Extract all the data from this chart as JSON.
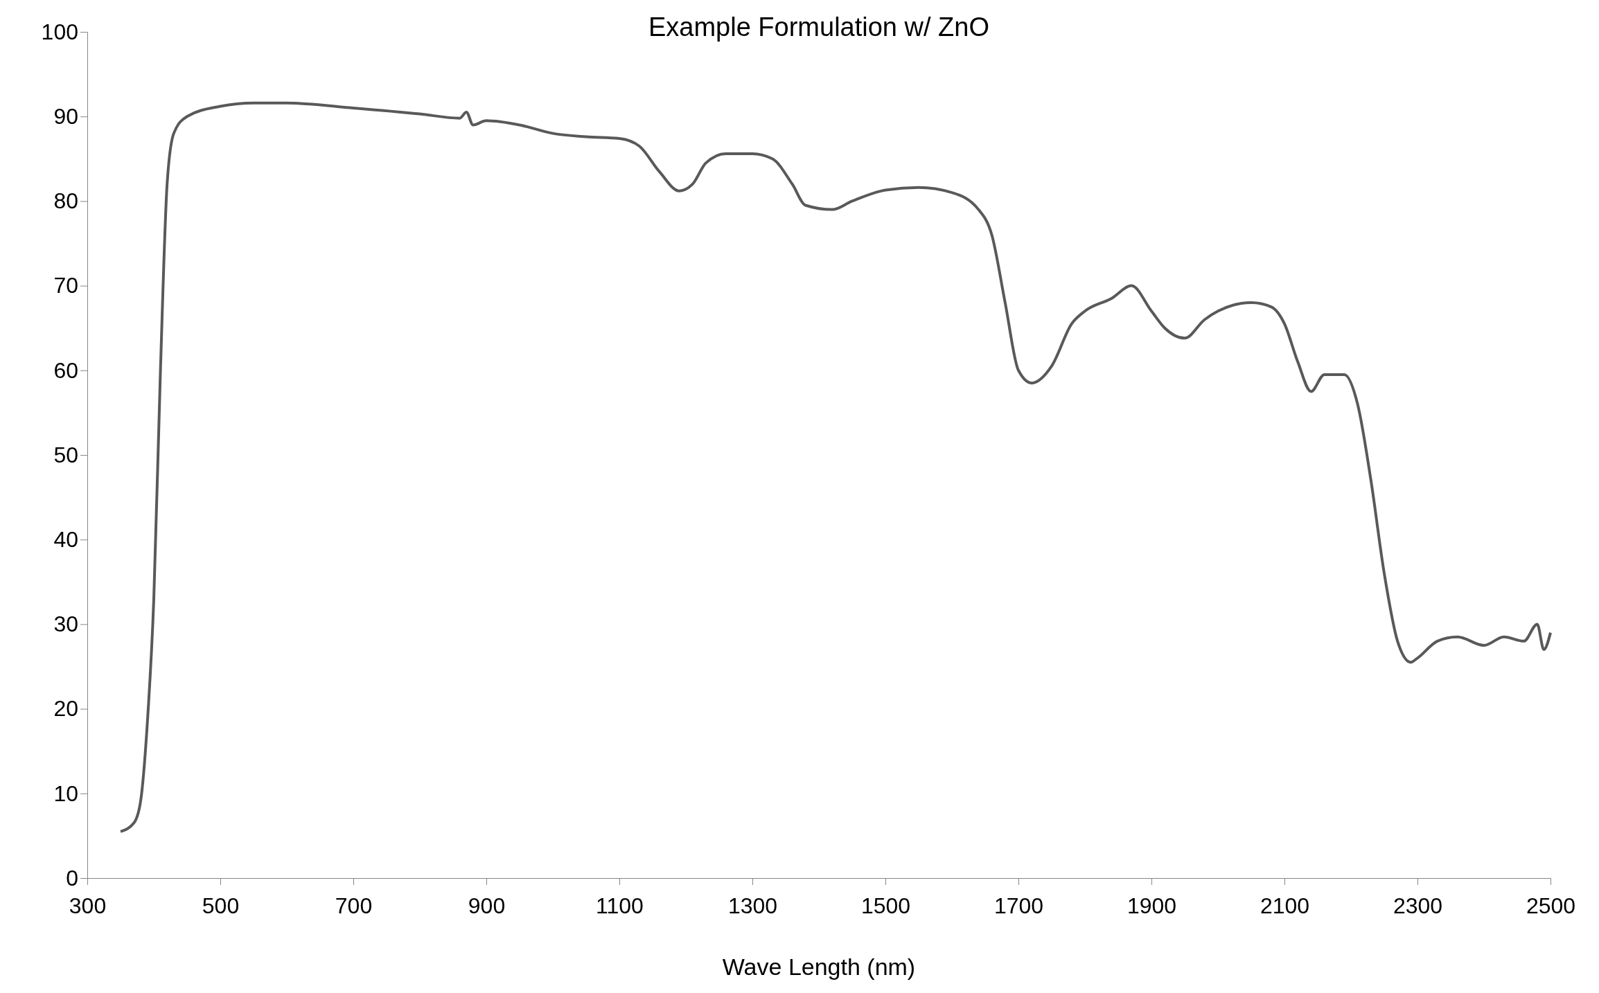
{
  "chart_data": {
    "type": "line",
    "title": "Example Formulation w/ ZnO",
    "xlabel": "Wave Length  (nm)",
    "xlim": [
      300,
      2500
    ],
    "xticks": [
      300,
      500,
      700,
      900,
      1100,
      1300,
      1500,
      1700,
      1900,
      2100,
      2300,
      2500
    ],
    "ylim": [
      0,
      100
    ],
    "yticks": [
      0,
      10,
      20,
      30,
      40,
      50,
      60,
      70,
      80,
      90,
      100
    ],
    "grid": false,
    "marker": "none",
    "line_style": "solid",
    "series": [
      {
        "color": "#595959",
        "x": [
          350,
          370,
          380,
          390,
          400,
          410,
          420,
          430,
          450,
          500,
          550,
          600,
          700,
          800,
          860,
          870,
          880,
          900,
          950,
          1000,
          1050,
          1100,
          1130,
          1160,
          1190,
          1210,
          1230,
          1260,
          1300,
          1330,
          1360,
          1380,
          1420,
          1450,
          1500,
          1550,
          1600,
          1640,
          1660,
          1680,
          1700,
          1720,
          1750,
          1780,
          1800,
          1840,
          1870,
          1900,
          1920,
          1950,
          1980,
          2000,
          2050,
          2080,
          2100,
          2120,
          2140,
          2160,
          2190,
          2210,
          2230,
          2250,
          2270,
          2290,
          2300,
          2330,
          2360,
          2400,
          2430,
          2460,
          2480,
          2490,
          2500
        ],
        "values": [
          5.5,
          6.5,
          9,
          18,
          33,
          60,
          82,
          88,
          90,
          91.2,
          91.6,
          91.6,
          91,
          90.3,
          89.8,
          90.5,
          89,
          89.5,
          89,
          88,
          87.6,
          87.4,
          86.5,
          83.5,
          81.2,
          82,
          84.5,
          85.6,
          85.6,
          85,
          82,
          79.5,
          79,
          80,
          81.3,
          81.6,
          81,
          79,
          76,
          68,
          60,
          58.5,
          60.5,
          65.5,
          67,
          68.5,
          70,
          67,
          65,
          63.8,
          66,
          67,
          68,
          67.5,
          65.5,
          61,
          57.5,
          59.5,
          59.5,
          56,
          47,
          36,
          28,
          25.5,
          26,
          28,
          28.5,
          27.5,
          28.5,
          28,
          30,
          27,
          29
        ]
      }
    ]
  }
}
